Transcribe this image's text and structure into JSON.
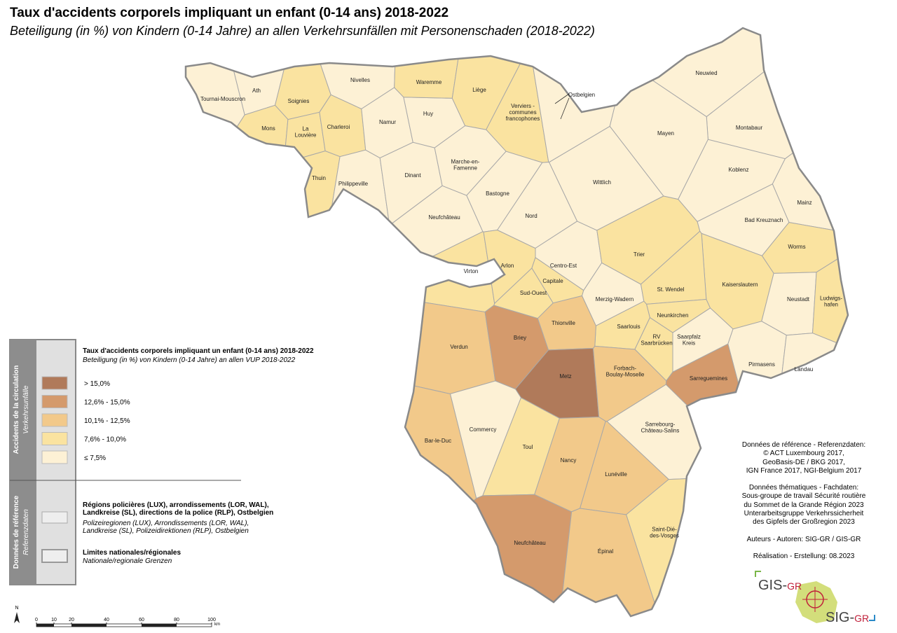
{
  "header": {
    "title": "Taux d'accidents corporels impliquant un enfant  (0-14 ans) 2018-2022",
    "subtitle": "Beteiligung (in %) von Kindern (0-14 Jahre) an allen Verkehrsunfällen mit Personenschaden (2018-2022)"
  },
  "regions": [
    {
      "label": [
        "Tournai-Mouscron"
      ],
      "color": "#fdf1d5"
    },
    {
      "label": [
        "Ath"
      ],
      "color": "#fdf1d5"
    },
    {
      "label": [
        "Soignies"
      ],
      "color": "#fae3a0"
    },
    {
      "label": [
        "Mons"
      ],
      "color": "#fae3a0"
    },
    {
      "label": [
        "La",
        "Louvière"
      ],
      "color": "#fae3a0"
    },
    {
      "label": [
        "Charleroi"
      ],
      "color": "#fae3a0"
    },
    {
      "label": [
        "Thuin"
      ],
      "color": "#fae3a0"
    },
    {
      "label": [
        "Philippeville"
      ],
      "color": "#fdf1d5"
    },
    {
      "label": [
        "Nivelles"
      ],
      "color": "#fdf1d5"
    },
    {
      "label": [
        "Namur"
      ],
      "color": "#fdf1d5"
    },
    {
      "label": [
        "Huy"
      ],
      "color": "#fdf1d5"
    },
    {
      "label": [
        "Dinant"
      ],
      "color": "#fdf1d5"
    },
    {
      "label": [
        "Waremme"
      ],
      "color": "#fae3a0"
    },
    {
      "label": [
        "Liège"
      ],
      "color": "#fae3a0"
    },
    {
      "label": [
        "Verviers -",
        "communes",
        "francophones"
      ],
      "color": "#fae3a0"
    },
    {
      "label": [
        "Ostbelgien"
      ],
      "color": "#fdf1d5"
    },
    {
      "label": [
        "Marche-en-",
        "Famenne"
      ],
      "color": "#fdf1d5"
    },
    {
      "label": [
        "Bastogne"
      ],
      "color": "#fdf1d5"
    },
    {
      "label": [
        "Neufchâteau"
      ],
      "color": "#fdf1d5"
    },
    {
      "label": [
        "Virton"
      ],
      "color": "#fae3a0"
    },
    {
      "label": [
        "Arlon"
      ],
      "color": "#fae3a0"
    },
    {
      "label": [
        "Nord"
      ],
      "color": "#fdf1d5"
    },
    {
      "label": [
        "Centro-Est"
      ],
      "color": "#fdf1d5"
    },
    {
      "label": [
        "Capitale"
      ],
      "color": "#fae3a0"
    },
    {
      "label": [
        "Sud-Ouest"
      ],
      "color": "#fae3a0"
    },
    {
      "label": [
        "Neuwied"
      ],
      "color": "#fdf1d5"
    },
    {
      "label": [
        "Montabaur"
      ],
      "color": "#fdf1d5"
    },
    {
      "label": [
        "Mayen"
      ],
      "color": "#fdf1d5"
    },
    {
      "label": [
        "Koblenz"
      ],
      "color": "#fdf1d5"
    },
    {
      "label": [
        "Wittlich"
      ],
      "color": "#fdf1d5"
    },
    {
      "label": [
        "Mainz"
      ],
      "color": "#fdf1d5"
    },
    {
      "label": [
        "Bad Kreuznach"
      ],
      "color": "#fdf1d5"
    },
    {
      "label": [
        "Trier"
      ],
      "color": "#fae3a0"
    },
    {
      "label": [
        "Worms"
      ],
      "color": "#fae3a0"
    },
    {
      "label": [
        "Kaiserslautern"
      ],
      "color": "#fae3a0"
    },
    {
      "label": [
        "Neustadt"
      ],
      "color": "#fdf1d5"
    },
    {
      "label": [
        "Ludwigs-",
        "hafen"
      ],
      "color": "#fae3a0"
    },
    {
      "label": [
        "Merzig-Wadern"
      ],
      "color": "#fdf1d5"
    },
    {
      "label": [
        "St. Wendel"
      ],
      "color": "#fae3a0"
    },
    {
      "label": [
        "Neunkirchen"
      ],
      "color": "#fae3a0"
    },
    {
      "label": [
        "Saarlouis"
      ],
      "color": "#fae3a0"
    },
    {
      "label": [
        "RV",
        "Saarbrücken"
      ],
      "color": "#fae3a0"
    },
    {
      "label": [
        "Saarpfalz",
        "Kreis"
      ],
      "color": "#fdf1d5"
    },
    {
      "label": [
        "Pirmasens"
      ],
      "color": "#fdf1d5"
    },
    {
      "label": [
        "Landau"
      ],
      "color": "#fdf1d5"
    },
    {
      "label": [
        "Verdun"
      ],
      "color": "#f2c98a"
    },
    {
      "label": [
        "Briey"
      ],
      "color": "#d49a6c"
    },
    {
      "label": [
        "Thionville"
      ],
      "color": "#f2c98a"
    },
    {
      "label": [
        "Metz"
      ],
      "color": "#b07a5a"
    },
    {
      "label": [
        "Forbach-",
        "Boulay-Moselle"
      ],
      "color": "#f2c98a"
    },
    {
      "label": [
        "Sarreguemines"
      ],
      "color": "#d49a6c"
    },
    {
      "label": [
        "Commercy"
      ],
      "color": "#fdf1d5"
    },
    {
      "label": [
        "Bar-le-Duc"
      ],
      "color": "#f2c98a"
    },
    {
      "label": [
        "Toul"
      ],
      "color": "#fae3a0"
    },
    {
      "label": [
        "Nancy"
      ],
      "color": "#f2c98a"
    },
    {
      "label": [
        "Sarrebourg-",
        "Château-Salins"
      ],
      "color": "#fdf1d5"
    },
    {
      "label": [
        "Lunéville"
      ],
      "color": "#f2c98a"
    },
    {
      "label": [
        "Saint-Dié-",
        "des-Vosges"
      ],
      "color": "#fae3a0"
    },
    {
      "label": [
        "Neufchâteau"
      ],
      "color": "#d49a6c"
    },
    {
      "label": [
        "Épinal"
      ],
      "color": "#f2c98a"
    }
  ],
  "legend": {
    "side_title": "Accidents de la circulation",
    "side_subtitle": "Verkehrsunfälle",
    "title": "Taux d'accidents corporels impliquant un enfant (0-14 ans) 2018-2022",
    "subtitle": "Beteiligung (in %) von Kindern (0-14 Jahre) an allen VUP 2018-2022",
    "classes": [
      {
        "label": "> 15,0%",
        "color": "#b07a5a"
      },
      {
        "label": "12,6% - 15,0%",
        "color": "#d49a6c"
      },
      {
        "label": "10,1% - 12,5%",
        "color": "#f2c98a"
      },
      {
        "label": "7,6% - 10,0%",
        "color": "#fae3a0"
      },
      {
        "label": "≤ 7,5%",
        "color": "#fdf1d5"
      }
    ],
    "ref_side_title": "Données de référence",
    "ref_side_subtitle": "Referenzdaten",
    "ref_items": [
      {
        "title": "Régions policières (LUX), arrondissements (LOR, WAL), Landkreise (SL), directions de la police (RLP), Ostbelgien",
        "subtitle": "Polizeiregionen (LUX), Arrondissements (LOR, WAL), Landkreise (SL), Polizeidirektionen (RLP), Ostbelgien"
      },
      {
        "title": "Limites nationales/régionales",
        "subtitle": "Nationale/regionale Grenzen"
      }
    ]
  },
  "credits": [
    [
      "Données de référence - Referenzdaten:",
      "© ACT Luxembourg 2017,",
      "GeoBasis-DE / BKG 2017,",
      "IGN France 2017, NGI-Belgium 2017"
    ],
    [
      "Données thématiques - Fachdaten:",
      "Sous-groupe de travail Sécurité routière",
      "du Sommet de la Grande Région 2023",
      "Unterarbeitsgruppe Verkehrssicherheit",
      "des Gipfels der Großregion 2023"
    ],
    [
      "Auteurs - Autoren: SIG-GR / GIS-GR"
    ],
    [
      "Réalisation - Erstellung: 08.2023"
    ]
  ],
  "scale": {
    "north": "N",
    "ticks": [
      0,
      10,
      20,
      40,
      60,
      80,
      100
    ],
    "unit": "km"
  },
  "logo": {
    "gis": "GIS-",
    "gis_gr": "GR",
    "sig": "SIG-",
    "sig_gr": "GR"
  }
}
